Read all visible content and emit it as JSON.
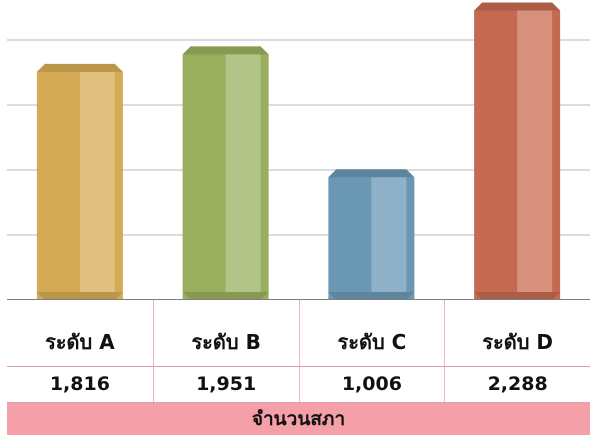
{
  "chart_data": {
    "type": "bar",
    "categories": [
      "ระดับ A",
      "ระดับ B",
      "ระดับ C",
      "ระดับ D"
    ],
    "values": [
      1816,
      1951,
      1006,
      2288
    ],
    "value_labels": [
      "1,816",
      "1,951",
      "1,006",
      "2,288"
    ],
    "ylim": [
      0,
      2500
    ],
    "yticks": [
      0,
      500,
      1000,
      1500,
      2000,
      2500
    ],
    "grid": true,
    "footer": "จำนวนสภา",
    "colors": [
      "#d4aa55",
      "#9aaf5e",
      "#6a98b4",
      "#c56a50"
    ],
    "highlight_colors": [
      "#dfc07e",
      "#b2c488",
      "#8eb0c8",
      "#d6907c"
    ]
  }
}
